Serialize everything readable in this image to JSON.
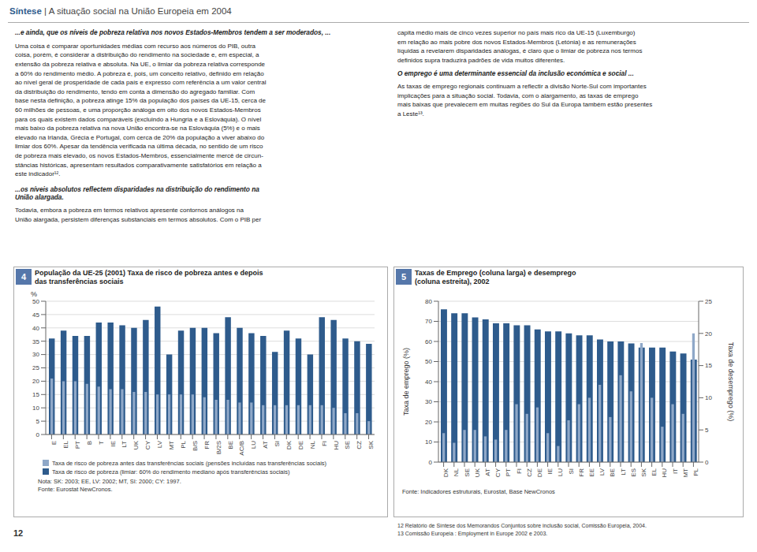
{
  "annotations": [
    "Síntese",
    " | A situação social na União Europeia em 2004",
    "...e ainda, que os níveis de pobreza relativa nos novos Estados-Membros tendem a ser moderados, ...",
    "Uma coisa é comparar oportunidades médias com recurso aos números do PIB, outra\ncoisa, porém, é considerar a distribuição do rendimento na sociedade e, em especial, a\nextensão da pobreza relativa e absoluta. Na UE, o limiar da pobreza relativa corresponde\na 60% do rendimento médio. A pobreza é, pois, um conceito relativo, definido em relação\nao nível geral de prosperidade de cada país e expresso com referência a um valor central\nda distribuição do rendimento, tendo em conta a dimensão do agregado familiar. Com\nbase nesta definição, a pobreza atinge 15% da população dos países da UE-15, cerca de\n60 milhões de pessoas, e uma proporção análoga em oito dos novos Estados-Membros\npara os quais existem dados comparáveis (excluindo a Hungria e a Eslováquia). O nível\nmais baixo da pobreza relativa na nova União encontra-se na Eslováquia (5%) e o mais\nelevado na Irlanda, Grécia e Portugal, com cerca de 20% da população a viver abaixo do\nlimiar dos 60%. Apesar da tendência verificada na última década, no sentido de um risco\nde pobreza mais elevado, os novos Estados-Membros, essencialmente mercê de circun-\nstâncias históricas, apresentam resultados comparativamente satisfatórios em relação a\neste indicador¹².",
    "...os níveis absolutos reflectem disparidades na distribuição do rendimento na\nUnião alargada.",
    "Todavia, embora a pobreza em termos relativos apresente contornos análogos na\nUnião alargada, persistem diferenças substanciais em termos absolutos. Com o PIB per",
    "capita médio mais de cinco vezes superior no país mais rico da UE-15 (Luxemburgo)\nem relação ao mais pobre dos novos Estados-Membros (Letónia) e as remunerações\nlíquidas a revelarem disparidades análogas, é claro que o limiar de pobreza nos termos\ndefinidos supra traduzirá padrões de vida muitos diferentes.",
    "O emprego é uma determinante essencial da inclusão económica e social ...",
    "As taxas de emprego regionais continuam a reflectir a divisão Norte-Sul com importantes\nimplicações para a situação social. Todavia, com o alargamento, as taxas de emprego\nmais baixas que prevalecem em muitas regiões do Sul da Europa também estão presentes\na Leste¹³.",
    "12 Relatório de Síntese dos Memorandos Conjuntos sobre inclusão social, Comissão Europeia, 2004.",
    "13 Comissão Europeia : Employment in Europe 2002 e 2003.",
    "12"
  ],
  "chart_data": [
    {
      "type": "bar",
      "title": "População da UE-25 (2001) Taxa de risco de pobreza antes e depois\ndas transferências sociais",
      "categories": [
        "E",
        "EL",
        "PT",
        "B",
        "T",
        "IE",
        "LT",
        "UK",
        "CY",
        "LV",
        "MT",
        "PL",
        "B/S",
        "FR",
        "B/2S",
        "BE",
        "AC/B",
        "LU",
        "AT",
        "SI",
        "DK",
        "DE",
        "NL",
        "FI",
        "HU",
        "SE",
        "CZ",
        "SK"
      ],
      "series": [
        {
          "name": "Taxa de risco de pobreza antes das transferências sociais (pensões incluídas nas transferências sociais)",
          "color": "#8fa8c8",
          "values": [
            21,
            20,
            20,
            19,
            18,
            17,
            17,
            16,
            16,
            15,
            15,
            15,
            15,
            14,
            13,
            13,
            12,
            12,
            11,
            11,
            11,
            11,
            11,
            11,
            10,
            8,
            8,
            5
          ]
        },
        {
          "name": "Taxa de risco de pobreza (limiar: 60% do rendimento mediano após transferências sociais)",
          "color": "#2e5b8c",
          "values": [
            36,
            39,
            37,
            37,
            42,
            42,
            41,
            40,
            43,
            48,
            30,
            39,
            40,
            40,
            38,
            44,
            40,
            38,
            37,
            31,
            39,
            36,
            30,
            44,
            43,
            36,
            35,
            34
          ]
        }
      ],
      "ylabel": "%",
      "ylim": [
        0,
        50
      ],
      "yticks": [
        0,
        5,
        10,
        15,
        20,
        25,
        30,
        35,
        40,
        45,
        50
      ],
      "grid": true,
      "annotations": [
        "4",
        "Nota: SK: 2003; EE, LV: 2002; MT, SI: 2000; CY: 1997.\nFonte: Eurostat NewCronos."
      ]
    },
    {
      "type": "bar",
      "title": "Taxas de Emprego (coluna larga) e desemprego\n(coluna estreita), 2002",
      "categories": [
        "DK",
        "NL",
        "SE",
        "UK",
        "AT",
        "CY",
        "PT",
        "FI",
        "CZ",
        "DE",
        "IE",
        "LU",
        "SI",
        "FR",
        "EE",
        "LV",
        "BE",
        "LT",
        "ES",
        "SK",
        "EL",
        "HU",
        "IT",
        "MT",
        "PL"
      ],
      "series": [
        {
          "color": "#2e5b8c",
          "values": [
            76,
            74,
            74,
            72,
            71,
            69,
            69,
            68,
            68,
            66,
            65,
            65,
            64,
            63,
            63,
            61,
            60,
            60,
            59,
            57,
            57,
            57,
            55,
            54,
            51
          ]
        },
        {
          "color": "#8fa8c8",
          "axis": "y2",
          "values": [
            4.5,
            3.0,
            5.0,
            5.0,
            4.0,
            3.5,
            5.0,
            9.0,
            7.5,
            8.5,
            4.5,
            2.5,
            6.5,
            9.0,
            10.0,
            12.0,
            7.0,
            13.5,
            11.0,
            18.5,
            10.0,
            5.5,
            9.0,
            7.5,
            20.0
          ]
        }
      ],
      "ylabel": "Taxa de emprego (%)",
      "y2label": "Taxa de desemprego (%)",
      "ylim": [
        0,
        80
      ],
      "yticks": [
        0,
        10,
        20,
        30,
        40,
        50,
        60,
        70,
        80
      ],
      "y2lim": [
        0,
        25
      ],
      "y2ticks": [
        0,
        5,
        10,
        15,
        20,
        25
      ],
      "grid": true,
      "annotations": [
        "5",
        "Fonte: Indicadores estruturais, Eurostat, Base NewCronos"
      ]
    }
  ]
}
